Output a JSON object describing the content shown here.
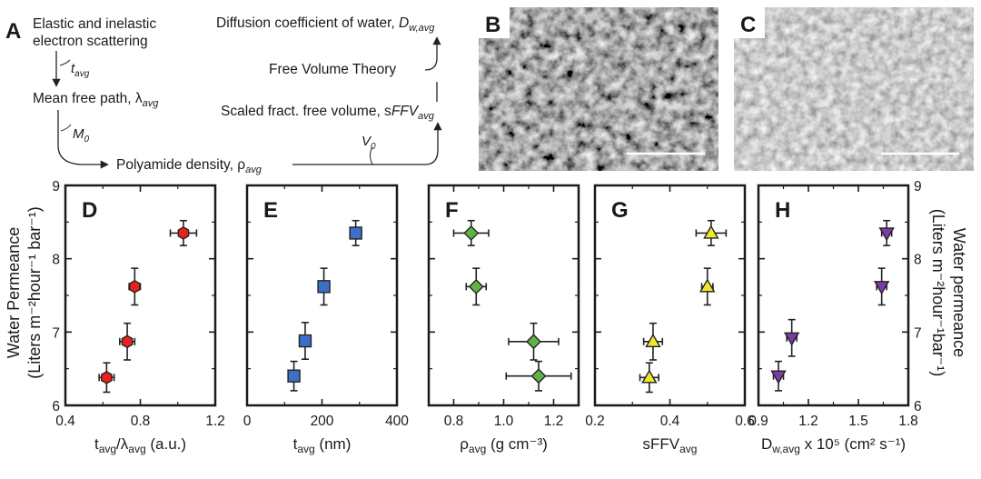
{
  "flowchart": {
    "panel_label": "A",
    "nodes": {
      "scatter": [
        "Elastic and inelastic",
        "electron scattering"
      ],
      "mfp": "Mean free path, λ",
      "mfp_sub": "avg",
      "density": "Polyamide density, ρ",
      "density_sub": "avg",
      "sffv": "Scaled fract. free volume, s",
      "sffv_it": "FFV",
      "sffv_sub": "avg",
      "fvt": "Free Volume Theory",
      "diff": "Diffusion coefficient of water, ",
      "diff_it": "D",
      "diff_sub": "w,avg"
    },
    "edges": {
      "t": "t",
      "t_sub": "avg",
      "m": "M",
      "m_sub": "0",
      "v": "V",
      "v_sub": "0"
    }
  },
  "micrographs": [
    {
      "label": "B",
      "tone": "dark"
    },
    {
      "label": "C",
      "tone": "light"
    }
  ],
  "chart_data": [
    {
      "panel": "D",
      "type": "scatter",
      "marker": "hexagon",
      "color": "#e8201e",
      "xlabel_main": "t",
      "xlabel_sub1": "avg",
      "xlabel_mid": "/λ",
      "xlabel_sub2": "avg",
      "xlabel_tail": " (a.u.)",
      "xlim": [
        0.4,
        1.2
      ],
      "xticks": [
        "0.4",
        "0.8",
        "1.2"
      ],
      "xtick_values": [
        0.4,
        0.8,
        1.2
      ],
      "ylim": [
        6,
        9
      ],
      "points": [
        {
          "x": 0.62,
          "y": 6.38,
          "xerr": 0.04,
          "yerr": 0.2
        },
        {
          "x": 0.73,
          "y": 6.87,
          "xerr": 0.04,
          "yerr": 0.25
        },
        {
          "x": 0.77,
          "y": 7.62,
          "xerr": 0.03,
          "yerr": 0.25
        },
        {
          "x": 1.03,
          "y": 8.35,
          "xerr": 0.07,
          "yerr": 0.17
        }
      ]
    },
    {
      "panel": "E",
      "type": "scatter",
      "marker": "square",
      "color": "#3c6fc6",
      "xlabel_main": "t",
      "xlabel_sub1": "avg",
      "xlabel_mid": "",
      "xlabel_sub2": "",
      "xlabel_tail": " (nm)",
      "xlim": [
        0,
        400
      ],
      "xticks": [
        "0",
        "200",
        "400"
      ],
      "xtick_values": [
        0,
        200,
        400
      ],
      "ylim": [
        6,
        9
      ],
      "points": [
        {
          "x": 125,
          "y": 6.4,
          "xerr": 12,
          "yerr": 0.2
        },
        {
          "x": 155,
          "y": 6.88,
          "xerr": 12,
          "yerr": 0.25
        },
        {
          "x": 205,
          "y": 7.62,
          "xerr": 12,
          "yerr": 0.25
        },
        {
          "x": 290,
          "y": 8.35,
          "xerr": 12,
          "yerr": 0.17
        }
      ]
    },
    {
      "panel": "F",
      "type": "scatter",
      "marker": "diamond",
      "color": "#5fb346",
      "xlabel_main": "ρ",
      "xlabel_sub1": "avg",
      "xlabel_mid": "",
      "xlabel_sub2": "",
      "xlabel_tail": " (g cm⁻³)",
      "xlim": [
        0.7,
        1.3
      ],
      "xticks": [
        "0.8",
        "1.0",
        "1.2"
      ],
      "xtick_values": [
        0.8,
        1.0,
        1.2
      ],
      "ylim": [
        6,
        9
      ],
      "points": [
        {
          "x": 0.87,
          "y": 8.35,
          "xerr": 0.07,
          "yerr": 0.17
        },
        {
          "x": 0.89,
          "y": 7.62,
          "xerr": 0.04,
          "yerr": 0.25
        },
        {
          "x": 1.12,
          "y": 6.87,
          "xerr": 0.1,
          "yerr": 0.25
        },
        {
          "x": 1.14,
          "y": 6.4,
          "xerr": 0.13,
          "yerr": 0.2
        }
      ]
    },
    {
      "panel": "G",
      "type": "scatter",
      "marker": "triangle-up",
      "color": "#f2e62a",
      "xlabel_main": "sFFV",
      "xlabel_sub1": "avg",
      "xlabel_mid": "",
      "xlabel_sub2": "",
      "xlabel_tail": "",
      "xlim": [
        0.2,
        0.6
      ],
      "xticks": [
        "0.2",
        "0.4",
        "0.6"
      ],
      "xtick_values": [
        0.2,
        0.4,
        0.6
      ],
      "ylim": [
        6,
        9
      ],
      "points": [
        {
          "x": 0.345,
          "y": 6.38,
          "xerr": 0.025,
          "yerr": 0.2
        },
        {
          "x": 0.355,
          "y": 6.87,
          "xerr": 0.025,
          "yerr": 0.25
        },
        {
          "x": 0.5,
          "y": 7.62,
          "xerr": 0.015,
          "yerr": 0.25
        },
        {
          "x": 0.51,
          "y": 8.35,
          "xerr": 0.04,
          "yerr": 0.17
        }
      ]
    },
    {
      "panel": "H",
      "type": "scatter",
      "marker": "triangle-down",
      "color": "#7b3ca4",
      "xlabel_main": "D",
      "xlabel_sub1": "w,avg",
      "xlabel_mid": "",
      "xlabel_sub2": "",
      "xlabel_tail": " x 10⁵ (cm² s⁻¹)",
      "xlim": [
        0.9,
        1.8
      ],
      "xticks": [
        "0.9",
        "1.2",
        "1.5",
        "1.8"
      ],
      "xtick_values": [
        0.9,
        1.2,
        1.5,
        1.8
      ],
      "ylim": [
        6,
        9
      ],
      "points": [
        {
          "x": 1.02,
          "y": 6.4,
          "xerr": 0.03,
          "yerr": 0.2
        },
        {
          "x": 1.1,
          "y": 6.92,
          "xerr": 0.03,
          "yerr": 0.25
        },
        {
          "x": 1.64,
          "y": 7.62,
          "xerr": 0.03,
          "yerr": 0.25
        },
        {
          "x": 1.67,
          "y": 8.35,
          "xerr": 0.03,
          "yerr": 0.17
        }
      ]
    }
  ],
  "shared_axes": {
    "yticks": [
      "6",
      "7",
      "8",
      "9"
    ],
    "ytick_values": [
      6,
      7,
      8,
      9
    ],
    "left_ylabel_line1": "Water Permeance",
    "left_ylabel_line2": "(Liters m⁻²hour⁻¹ bar⁻¹)",
    "right_ylabel_line1": "Water permeance",
    "right_ylabel_line2": "(Liters m⁻²hour⁻¹bar⁻¹)"
  }
}
